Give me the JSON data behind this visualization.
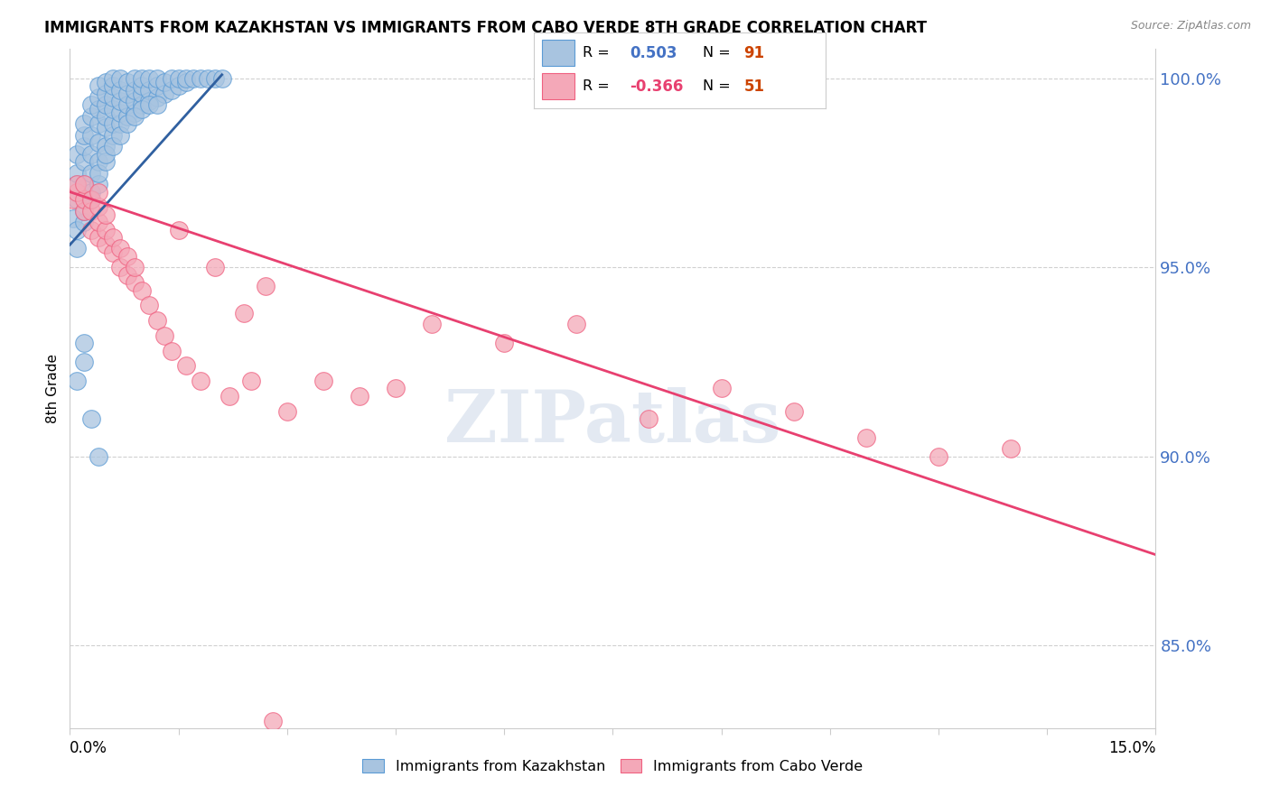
{
  "title": "IMMIGRANTS FROM KAZAKHSTAN VS IMMIGRANTS FROM CABO VERDE 8TH GRADE CORRELATION CHART",
  "source": "Source: ZipAtlas.com",
  "ylabel": "8th Grade",
  "xmin": 0.0,
  "xmax": 0.15,
  "ymin": 0.828,
  "ymax": 1.008,
  "yticks": [
    0.85,
    0.9,
    0.95,
    1.0
  ],
  "ytick_labels": [
    "85.0%",
    "90.0%",
    "95.0%",
    "100.0%"
  ],
  "kaz_color": "#a8c4e0",
  "cabo_color": "#f4a8b8",
  "kaz_edge_color": "#5b9bd5",
  "cabo_edge_color": "#f06080",
  "kaz_line_color": "#3060a0",
  "cabo_line_color": "#e84070",
  "watermark": "ZIPatlas",
  "watermark_color": "#ccd8e8",
  "legend_box_color": "#f0f0f0",
  "right_tick_color": "#4472c4",
  "kaz_scatter_x": [
    0.0005,
    0.001,
    0.001,
    0.001,
    0.001,
    0.002,
    0.002,
    0.002,
    0.002,
    0.002,
    0.003,
    0.003,
    0.003,
    0.003,
    0.003,
    0.004,
    0.004,
    0.004,
    0.004,
    0.004,
    0.004,
    0.005,
    0.005,
    0.005,
    0.005,
    0.005,
    0.005,
    0.006,
    0.006,
    0.006,
    0.006,
    0.006,
    0.006,
    0.007,
    0.007,
    0.007,
    0.007,
    0.007,
    0.008,
    0.008,
    0.008,
    0.008,
    0.009,
    0.009,
    0.009,
    0.009,
    0.01,
    0.01,
    0.01,
    0.01,
    0.011,
    0.011,
    0.011,
    0.012,
    0.012,
    0.012,
    0.013,
    0.013,
    0.014,
    0.014,
    0.015,
    0.015,
    0.016,
    0.016,
    0.017,
    0.018,
    0.019,
    0.02,
    0.021,
    0.001,
    0.001,
    0.002,
    0.002,
    0.003,
    0.003,
    0.004,
    0.004,
    0.005,
    0.005,
    0.006,
    0.007,
    0.008,
    0.009,
    0.01,
    0.011,
    0.012,
    0.001,
    0.002,
    0.002,
    0.003,
    0.004
  ],
  "kaz_scatter_y": [
    0.963,
    0.968,
    0.972,
    0.975,
    0.98,
    0.972,
    0.978,
    0.982,
    0.985,
    0.988,
    0.975,
    0.98,
    0.985,
    0.99,
    0.993,
    0.978,
    0.983,
    0.988,
    0.992,
    0.995,
    0.998,
    0.982,
    0.987,
    0.99,
    0.993,
    0.996,
    0.999,
    0.985,
    0.988,
    0.992,
    0.995,
    0.998,
    1.0,
    0.988,
    0.991,
    0.994,
    0.997,
    1.0,
    0.99,
    0.993,
    0.996,
    0.999,
    0.991,
    0.994,
    0.997,
    1.0,
    0.993,
    0.996,
    0.998,
    1.0,
    0.994,
    0.997,
    1.0,
    0.995,
    0.998,
    1.0,
    0.996,
    0.999,
    0.997,
    1.0,
    0.998,
    1.0,
    0.999,
    1.0,
    1.0,
    1.0,
    1.0,
    1.0,
    1.0,
    0.955,
    0.96,
    0.962,
    0.965,
    0.968,
    0.97,
    0.972,
    0.975,
    0.978,
    0.98,
    0.982,
    0.985,
    0.988,
    0.99,
    0.992,
    0.993,
    0.993,
    0.92,
    0.925,
    0.93,
    0.91,
    0.9
  ],
  "cabo_scatter_x": [
    0.0005,
    0.001,
    0.001,
    0.002,
    0.002,
    0.002,
    0.003,
    0.003,
    0.003,
    0.004,
    0.004,
    0.004,
    0.004,
    0.005,
    0.005,
    0.005,
    0.006,
    0.006,
    0.007,
    0.007,
    0.008,
    0.008,
    0.009,
    0.009,
    0.01,
    0.011,
    0.012,
    0.013,
    0.014,
    0.015,
    0.016,
    0.018,
    0.02,
    0.022,
    0.024,
    0.027,
    0.03,
    0.035,
    0.04,
    0.045,
    0.05,
    0.06,
    0.07,
    0.08,
    0.09,
    0.1,
    0.11,
    0.12,
    0.13,
    0.025,
    0.028
  ],
  "cabo_scatter_y": [
    0.968,
    0.97,
    0.972,
    0.965,
    0.968,
    0.972,
    0.96,
    0.965,
    0.968,
    0.958,
    0.962,
    0.966,
    0.97,
    0.956,
    0.96,
    0.964,
    0.954,
    0.958,
    0.95,
    0.955,
    0.948,
    0.953,
    0.946,
    0.95,
    0.944,
    0.94,
    0.936,
    0.932,
    0.928,
    0.96,
    0.924,
    0.92,
    0.95,
    0.916,
    0.938,
    0.945,
    0.912,
    0.92,
    0.916,
    0.918,
    0.935,
    0.93,
    0.935,
    0.91,
    0.918,
    0.912,
    0.905,
    0.9,
    0.902,
    0.92,
    0.83
  ],
  "kaz_line_x": [
    0.0,
    0.021
  ],
  "kaz_line_y": [
    0.956,
    1.001
  ],
  "cabo_line_x": [
    0.0,
    0.15
  ],
  "cabo_line_y": [
    0.97,
    0.874
  ]
}
